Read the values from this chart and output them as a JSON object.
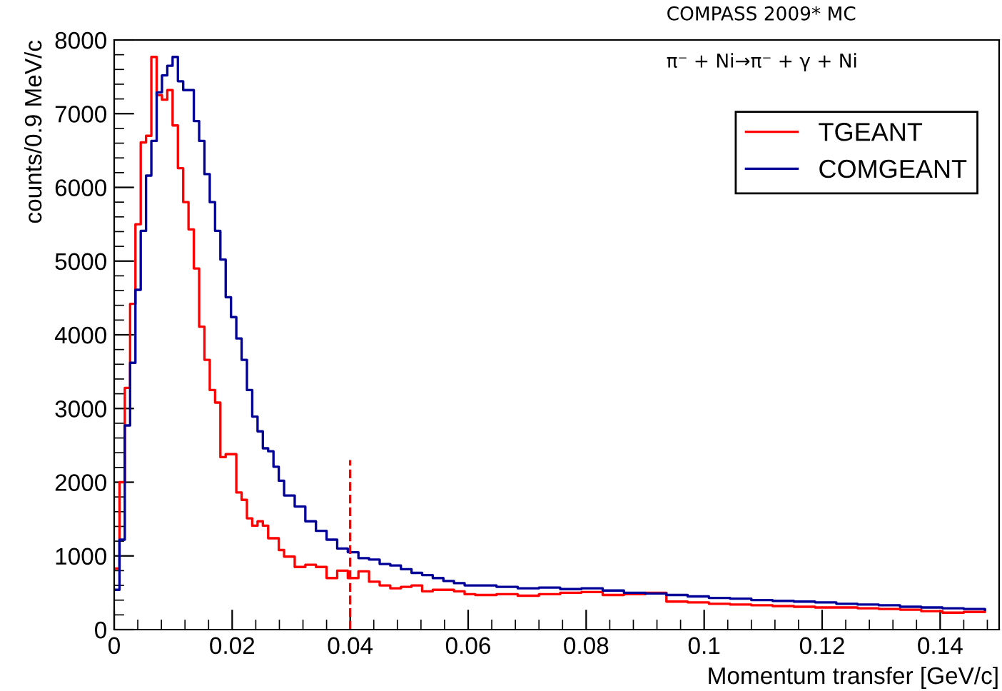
{
  "chart_data": {
    "type": "step",
    "xlabel": "Momentum transfer [GeV/c]",
    "ylabel": "counts/0.9 MeV/c",
    "annotations": [
      "COMPASS 2009* MC",
      "π⁻ + Ni→π⁻ + γ + Ni"
    ],
    "xlim": [
      0,
      0.15
    ],
    "xticks": [
      {
        "value": 0,
        "label": "0"
      },
      0.02,
      0.04,
      0.06,
      0.08,
      {
        "value": 0.1,
        "label": "0.1"
      },
      0.12,
      0.14
    ],
    "ylim": [
      0,
      8000
    ],
    "yticks": [
      0,
      1000,
      2000,
      3000,
      4000,
      5000,
      6000,
      7000,
      8000
    ],
    "grid": false,
    "legend": "top right",
    "series": [
      {
        "name": "TGEANT",
        "color": "#ff0000",
        "x": [
          0,
          0.0009,
          0.0018,
          0.0027,
          0.0036,
          0.0045,
          0.0054,
          0.0063,
          0.0072,
          0.0081,
          0.009,
          0.0099,
          0.0108,
          0.0117,
          0.0126,
          0.0135,
          0.0144,
          0.0153,
          0.0162,
          0.0171,
          0.018,
          0.0189,
          0.0198,
          0.0207,
          0.0216,
          0.0225,
          0.0234,
          0.0243,
          0.0252,
          0.0261,
          0.027,
          0.0279,
          0.0288,
          0.0306,
          0.0324,
          0.0342,
          0.036,
          0.0378,
          0.0396,
          0.0414,
          0.0432,
          0.045,
          0.0468,
          0.0486,
          0.0504,
          0.0522,
          0.054,
          0.0558,
          0.0576,
          0.0594,
          0.0612,
          0.0648,
          0.0684,
          0.072,
          0.0756,
          0.0792,
          0.0828,
          0.0864,
          0.09,
          0.0936,
          0.0972,
          0.1008,
          0.1044,
          0.108,
          0.1116,
          0.1152,
          0.1188,
          0.1224,
          0.126,
          0.1296,
          0.1332,
          0.1368,
          0.1404,
          0.144,
          0.1476
        ],
        "values": [
          830,
          2000,
          3280,
          4420,
          5500,
          6610,
          6700,
          7770,
          7250,
          7190,
          7320,
          6840,
          6260,
          5800,
          5430,
          4900,
          4110,
          3660,
          3250,
          3080,
          2340,
          2380,
          2380,
          1860,
          1760,
          1510,
          1410,
          1470,
          1410,
          1240,
          1240,
          1080,
          990,
          850,
          880,
          850,
          700,
          800,
          700,
          790,
          650,
          600,
          560,
          580,
          600,
          520,
          540,
          540,
          520,
          480,
          470,
          480,
          460,
          480,
          500,
          510,
          470,
          480,
          500,
          380,
          370,
          350,
          340,
          330,
          320,
          310,
          300,
          300,
          290,
          280,
          270,
          250,
          230,
          240,
          260
        ]
      },
      {
        "name": "COMGEANT",
        "color": "#000099",
        "x": [
          0,
          0.0009,
          0.0018,
          0.0027,
          0.0036,
          0.0045,
          0.0054,
          0.0063,
          0.0072,
          0.0081,
          0.009,
          0.0099,
          0.0108,
          0.0117,
          0.0126,
          0.0135,
          0.0144,
          0.0153,
          0.0162,
          0.0171,
          0.018,
          0.0189,
          0.0198,
          0.0207,
          0.0216,
          0.0225,
          0.0234,
          0.0243,
          0.0252,
          0.0261,
          0.027,
          0.0279,
          0.0288,
          0.0306,
          0.0324,
          0.0342,
          0.036,
          0.0378,
          0.0396,
          0.0414,
          0.0432,
          0.045,
          0.0468,
          0.0486,
          0.0504,
          0.0522,
          0.054,
          0.0558,
          0.0576,
          0.0594,
          0.0612,
          0.0648,
          0.0684,
          0.072,
          0.0756,
          0.0792,
          0.0828,
          0.0864,
          0.09,
          0.0936,
          0.0972,
          0.1008,
          0.1044,
          0.108,
          0.1116,
          0.1152,
          0.1188,
          0.1224,
          0.126,
          0.1296,
          0.1332,
          0.1368,
          0.1404,
          0.144,
          0.1476
        ],
        "values": [
          540,
          1220,
          2770,
          3620,
          4610,
          5410,
          6160,
          6630,
          7290,
          7520,
          7650,
          7770,
          7440,
          7320,
          7320,
          6900,
          6630,
          6180,
          5800,
          5410,
          5020,
          4510,
          4240,
          3950,
          3660,
          3250,
          2890,
          2690,
          2460,
          2420,
          2210,
          2020,
          1820,
          1670,
          1470,
          1340,
          1220,
          1100,
          1050,
          970,
          950,
          890,
          870,
          820,
          770,
          740,
          700,
          660,
          630,
          600,
          600,
          580,
          560,
          570,
          550,
          560,
          530,
          500,
          490,
          470,
          450,
          430,
          420,
          400,
          390,
          380,
          370,
          350,
          340,
          330,
          310,
          300,
          290,
          280,
          270
        ]
      },
      {
        "type": "line",
        "color": "#ff0000",
        "line_style": "dashed",
        "x": [
          0.04,
          0.04
        ],
        "values": [
          0,
          2300
        ]
      }
    ]
  }
}
